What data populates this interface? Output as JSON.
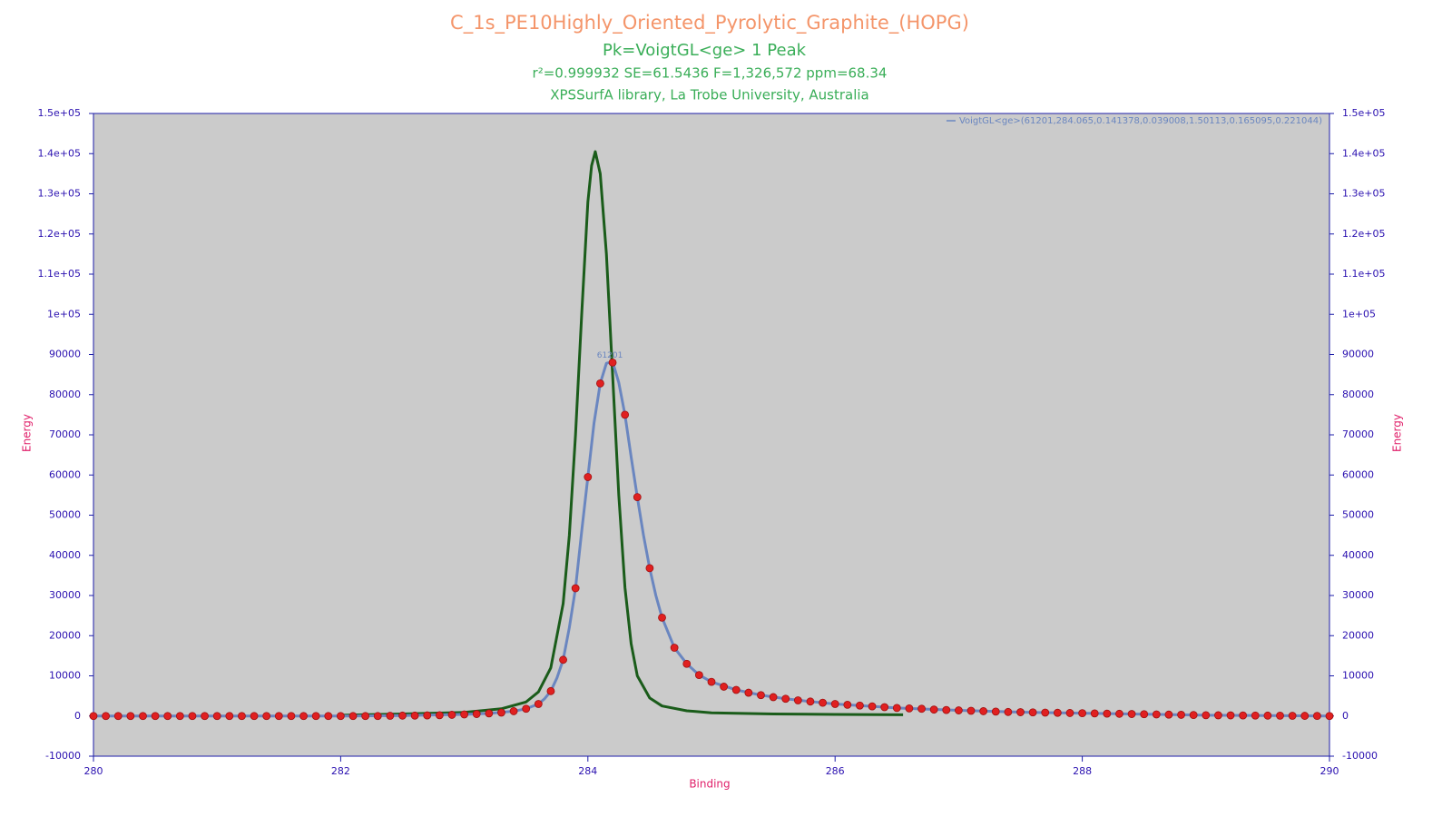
{
  "chart_data": {
    "type": "scatter",
    "title": "C_1s_PE10Highly_Oriented_Pyrolytic_Graphite_(HOPG)",
    "subtitle": "Pk=VoigtGL<ge>  1 Peak",
    "stats": "r²=0.999932  SE=61.5436  F=1,326,572  ppm=68.34",
    "source": "XPSSurfA library, La Trobe University, Australia",
    "xlabel": "Binding",
    "ylabel": "Energy",
    "y2label": "Energy",
    "peak_label": "61201",
    "background": "#cbcbcb",
    "axis_color": "#1c1ca8",
    "xlim": [
      280,
      290
    ],
    "xticks": [
      280,
      282,
      284,
      286,
      288,
      290
    ],
    "ylim": [
      -10000,
      150000
    ],
    "yticks": [
      -10000,
      0,
      10000,
      20000,
      30000,
      40000,
      50000,
      60000,
      70000,
      80000,
      90000,
      {
        "value": 100000,
        "label": "1e+05"
      },
      {
        "value": 110000,
        "label": "1.1e+05"
      },
      {
        "value": 120000,
        "label": "1.2e+05"
      },
      {
        "value": 130000,
        "label": "1.3e+05"
      },
      {
        "value": 140000,
        "label": "1.4e+05"
      },
      {
        "value": 150000,
        "label": "1.5e+05"
      }
    ],
    "y2lim": [
      -10000,
      150000
    ],
    "y2ticks": [
      -10000,
      0,
      10000,
      20000,
      30000,
      40000,
      50000,
      60000,
      70000,
      80000,
      90000,
      {
        "value": 100000,
        "label": "1e+05"
      },
      {
        "value": 110000,
        "label": "1.1e+05"
      },
      {
        "value": 120000,
        "label": "1.2e+05"
      },
      {
        "value": 130000,
        "label": "1.3e+05"
      },
      {
        "value": 140000,
        "label": "1.4e+05"
      },
      {
        "value": 150000,
        "label": "1.5e+05"
      }
    ],
    "series": [
      {
        "type": "line",
        "color": "#1a5c1a",
        "x": [
          282,
          282.5,
          283,
          283.3,
          283.5,
          283.6,
          283.7,
          283.8,
          283.85,
          283.9,
          283.95,
          284.0,
          284.03,
          284.06,
          284.1,
          284.15,
          284.2,
          284.25,
          284.3,
          284.35,
          284.4,
          284.5,
          284.6,
          284.8,
          285.0,
          285.5,
          286.0,
          286.55
        ],
        "values": [
          200,
          500,
          900,
          1800,
          3500,
          6000,
          12000,
          28000,
          45000,
          70000,
          100000,
          128000,
          137000,
          140500,
          135000,
          115000,
          85000,
          55000,
          32000,
          18000,
          10000,
          4500,
          2500,
          1300,
          800,
          500,
          400,
          300
        ]
      },
      {
        "type": "line",
        "name": "VoigtGL<ge>(61201,284.065,0.141378,0.039008,1.50113,0.165095,0.221044)",
        "color": "#6a86c0",
        "x": [
          280,
          281,
          282,
          282.5,
          283,
          283.2,
          283.4,
          283.5,
          283.6,
          283.65,
          283.7,
          283.75,
          283.8,
          283.85,
          283.9,
          283.95,
          284.0,
          284.05,
          284.1,
          284.15,
          284.2,
          284.25,
          284.3,
          284.35,
          284.4,
          284.45,
          284.5,
          284.55,
          284.6,
          284.7,
          284.8,
          284.9,
          285.0,
          285.2,
          285.4,
          285.6,
          285.8,
          286.0,
          286.5,
          287.0,
          287.5,
          288.0,
          288.5,
          289.0,
          289.5,
          290
        ],
        "values": [
          0,
          0,
          0,
          100,
          400,
          650,
          1200,
          1800,
          3000,
          4300,
          6200,
          9500,
          14000,
          22000,
          31800,
          46000,
          59500,
          73000,
          82800,
          87800,
          88200,
          83000,
          75000,
          64500,
          54500,
          45000,
          36800,
          30000,
          24500,
          17000,
          13000,
          10200,
          8500,
          6500,
          5200,
          4300,
          3600,
          3000,
          2000,
          1400,
          950,
          700,
          450,
          200,
          100,
          0
        ]
      },
      {
        "type": "scatter",
        "color": "#e02020",
        "x": [
          280.0,
          280.1,
          280.2,
          280.3,
          280.4,
          280.5,
          280.6,
          280.7,
          280.8,
          280.9,
          281.0,
          281.1,
          281.2,
          281.3,
          281.4,
          281.5,
          281.6,
          281.7,
          281.8,
          281.9,
          282.0,
          282.1,
          282.2,
          282.3,
          282.4,
          282.5,
          282.6,
          282.7,
          282.8,
          282.9,
          283.0,
          283.1,
          283.2,
          283.3,
          283.4,
          283.5,
          283.6,
          283.7,
          283.8,
          283.9,
          284.0,
          284.1,
          284.2,
          284.3,
          284.4,
          284.5,
          284.6,
          284.7,
          284.8,
          284.9,
          285.0,
          285.1,
          285.2,
          285.3,
          285.4,
          285.5,
          285.6,
          285.7,
          285.8,
          285.9,
          286.0,
          286.1,
          286.2,
          286.3,
          286.4,
          286.5,
          286.6,
          286.7,
          286.8,
          286.9,
          287.0,
          287.1,
          287.2,
          287.3,
          287.4,
          287.5,
          287.6,
          287.7,
          287.8,
          287.9,
          288.0,
          288.1,
          288.2,
          288.3,
          288.4,
          288.5,
          288.6,
          288.7,
          288.8,
          288.9,
          289.0,
          289.1,
          289.2,
          289.3,
          289.4,
          289.5,
          289.6,
          289.7,
          289.8,
          289.9,
          290.0
        ],
        "values": [
          0,
          0,
          0,
          0,
          0,
          0,
          0,
          0,
          0,
          0,
          0,
          0,
          0,
          0,
          0,
          0,
          0,
          0,
          0,
          0,
          0,
          0,
          0,
          0,
          50,
          100,
          100,
          150,
          200,
          300,
          400,
          500,
          650,
          850,
          1200,
          1800,
          3000,
          6200,
          14000,
          31800,
          59500,
          82800,
          88000,
          75000,
          54500,
          36800,
          24500,
          17000,
          13000,
          10200,
          8500,
          7300,
          6500,
          5800,
          5200,
          4700,
          4300,
          3900,
          3600,
          3300,
          3000,
          2800,
          2600,
          2400,
          2200,
          2000,
          1900,
          1800,
          1600,
          1500,
          1400,
          1300,
          1200,
          1100,
          1000,
          950,
          900,
          850,
          800,
          750,
          700,
          650,
          600,
          550,
          500,
          450,
          400,
          350,
          300,
          250,
          200,
          180,
          160,
          140,
          120,
          100,
          80,
          60,
          40,
          20,
          0
        ]
      }
    ]
  }
}
